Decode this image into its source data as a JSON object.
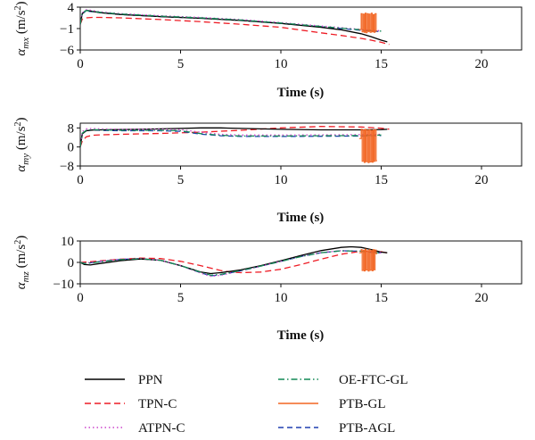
{
  "chart_data": [
    {
      "type": "line",
      "ylabel_symbol": "α",
      "ylabel_sub": "mx",
      "ylabel_unit_pre": " (m/s",
      "ylabel_unit_sup": "2",
      "ylabel_unit_post": ")",
      "xlabel": "Time (s)",
      "xlim": [
        0,
        22
      ],
      "ylim": [
        -6,
        4
      ],
      "xticks": [
        "0",
        "5",
        "10",
        "15",
        "20"
      ],
      "yticks": [
        "4",
        "−1",
        "−6"
      ],
      "xtick_values": [
        0,
        5,
        10,
        15,
        20
      ],
      "ytick_values": [
        4,
        -1,
        -6
      ],
      "series": [
        {
          "key": "ppn",
          "x": [
            0,
            0.1,
            0.3,
            0.5,
            1,
            2,
            4,
            6,
            8,
            10,
            12,
            13,
            14,
            14.5,
            15,
            15.3
          ],
          "y": [
            0,
            2.5,
            3.3,
            3.1,
            2.7,
            2.3,
            1.8,
            1.4,
            0.9,
            0.2,
            -0.7,
            -1.3,
            -2.2,
            -2.9,
            -3.7,
            -4.1
          ]
        },
        {
          "key": "tpn",
          "x": [
            0,
            0.1,
            0.3,
            0.6,
            1,
            2,
            4,
            6,
            8,
            10,
            12,
            13,
            14,
            14.5,
            15,
            15.4
          ],
          "y": [
            0,
            1.2,
            1.5,
            1.6,
            1.6,
            1.5,
            1.1,
            0.6,
            0,
            -0.7,
            -2.0,
            -2.6,
            -3.3,
            -3.7,
            -4.2,
            -4.7
          ]
        },
        {
          "key": "atpn",
          "x": [
            0,
            0.1,
            0.3,
            0.5,
            1,
            2,
            4,
            6,
            8,
            10,
            12,
            13,
            14,
            14.5,
            15
          ],
          "y": [
            0,
            2.7,
            3.4,
            3.3,
            2.9,
            2.5,
            2.0,
            1.6,
            1.1,
            0.4,
            -0.4,
            -0.8,
            -1.2,
            -1.4,
            -1.5
          ]
        },
        {
          "key": "oe",
          "x": [
            0,
            0.1,
            0.3,
            0.5,
            1,
            2,
            4,
            6,
            8,
            10,
            12,
            13,
            14,
            14.5,
            15
          ],
          "y": [
            0,
            2.6,
            3.2,
            3.1,
            2.8,
            2.4,
            1.9,
            1.5,
            1.0,
            0.3,
            -0.5,
            -0.9,
            -1.3,
            -1.5,
            -1.6
          ]
        },
        {
          "key": "ptbgl",
          "x": [
            13.9,
            14.0,
            14.0,
            14.05,
            14.05,
            14.1,
            14.1,
            14.15,
            14.15,
            14.2,
            14.2,
            14.25,
            14.25,
            14.3,
            14.3,
            14.35,
            14.35,
            14.4,
            14.4,
            14.45,
            14.45,
            14.5,
            14.5,
            14.55,
            14.55,
            14.6,
            14.6,
            14.65,
            14.65,
            14.7,
            14.7,
            14.75,
            14.75,
            14.8
          ],
          "y": [
            -1.2,
            -1.2,
            2.5,
            2.5,
            -1.8,
            -1.8,
            2.4,
            2.4,
            -1.9,
            -1.9,
            2.6,
            2.6,
            -2.0,
            -2.0,
            2.5,
            2.5,
            -1.7,
            -1.7,
            2.4,
            2.4,
            -1.9,
            -1.9,
            2.6,
            2.6,
            -1.8,
            -1.8,
            2.3,
            2.3,
            -1.9,
            -1.9,
            2.5,
            2.5,
            -1.6,
            -1.6
          ]
        },
        {
          "key": "ptbagl",
          "x": [
            0,
            0.1,
            0.3,
            0.5,
            1,
            2,
            4,
            6,
            8,
            10,
            12,
            13,
            14,
            14.5,
            15
          ],
          "y": [
            0,
            2.5,
            3.1,
            3.0,
            2.7,
            2.3,
            1.8,
            1.4,
            0.9,
            0.2,
            -0.6,
            -1.0,
            -1.4,
            -1.6,
            -1.7
          ]
        }
      ]
    },
    {
      "type": "line",
      "ylabel_symbol": "α",
      "ylabel_sub": "my",
      "ylabel_unit_pre": " (m/s",
      "ylabel_unit_sup": "2",
      "ylabel_unit_post": ")",
      "xlabel": "Time (s)",
      "xlim": [
        0,
        22
      ],
      "ylim": [
        -8,
        10
      ],
      "xticks": [
        "0",
        "5",
        "10",
        "15",
        "20"
      ],
      "yticks": [
        "8",
        "0",
        "−8"
      ],
      "xtick_values": [
        0,
        5,
        10,
        15,
        20
      ],
      "ytick_values": [
        8,
        0,
        -8
      ],
      "series": [
        {
          "key": "ppn",
          "x": [
            0,
            0.1,
            0.3,
            0.6,
            1,
            2,
            3,
            4,
            5,
            6,
            7,
            8,
            10,
            12,
            14,
            15,
            15.3
          ],
          "y": [
            0,
            5.5,
            6.8,
            7.1,
            7.2,
            7.3,
            7.4,
            7.6,
            7.8,
            8.0,
            8.0,
            7.8,
            7.4,
            7.2,
            7.2,
            7.3,
            7.4
          ]
        },
        {
          "key": "tpn",
          "x": [
            0,
            0.1,
            0.3,
            0.6,
            1,
            2,
            4,
            6,
            8,
            10,
            12,
            14,
            15,
            15.4
          ],
          "y": [
            0,
            2.5,
            4.3,
            4.9,
            5.1,
            5.3,
            5.7,
            6.2,
            7.0,
            8.0,
            8.6,
            8.4,
            7.9,
            7.5
          ]
        },
        {
          "key": "atpn",
          "x": [
            0,
            0.1,
            0.3,
            0.6,
            1,
            2,
            4,
            5,
            6,
            7,
            8,
            10,
            12,
            14,
            15
          ],
          "y": [
            0,
            6.5,
            7.6,
            7.8,
            7.6,
            7.4,
            7.5,
            7.3,
            6.2,
            5.3,
            5.0,
            5.0,
            5.1,
            5.2,
            5.3
          ]
        },
        {
          "key": "oe",
          "x": [
            0,
            0.1,
            0.3,
            0.6,
            1,
            2,
            4,
            5,
            6,
            7,
            8,
            10,
            12,
            14,
            15
          ],
          "y": [
            0,
            5.8,
            7.0,
            7.3,
            7.2,
            7.0,
            7.0,
            6.8,
            5.6,
            4.9,
            4.6,
            4.6,
            4.7,
            4.8,
            5.0
          ]
        },
        {
          "key": "ptbgl",
          "x": [
            13.9,
            14.0,
            14.0,
            14.05,
            14.05,
            14.1,
            14.1,
            14.15,
            14.15,
            14.2,
            14.2,
            14.25,
            14.25,
            14.3,
            14.3,
            14.35,
            14.35,
            14.4,
            14.4,
            14.45,
            14.45,
            14.5,
            14.5,
            14.55,
            14.55,
            14.6,
            14.6,
            14.65,
            14.65,
            14.7,
            14.7,
            14.75,
            14.75,
            14.8
          ],
          "y": [
            3.5,
            3.5,
            7.5,
            7.5,
            -6.0,
            -6.0,
            7.2,
            7.2,
            -6.5,
            -6.5,
            7.4,
            7.4,
            -6.2,
            -6.2,
            7.1,
            7.1,
            -6.6,
            -6.6,
            7.3,
            7.3,
            -6.3,
            -6.3,
            7.0,
            7.0,
            -6.4,
            -6.4,
            7.2,
            7.2,
            -6.1,
            -6.1,
            7.3,
            7.3,
            -5.8,
            -5.8
          ]
        },
        {
          "key": "ptbagl",
          "x": [
            0,
            0.1,
            0.3,
            0.6,
            1,
            2,
            4,
            5,
            6,
            7,
            8,
            10,
            12,
            14,
            15
          ],
          "y": [
            0,
            5.6,
            6.8,
            7.1,
            7.0,
            6.8,
            6.8,
            6.6,
            5.4,
            4.7,
            4.4,
            4.4,
            4.5,
            4.6,
            4.8
          ]
        }
      ]
    },
    {
      "type": "line",
      "ylabel_symbol": "α",
      "ylabel_sub": "mz",
      "ylabel_unit_pre": " (m/s",
      "ylabel_unit_sup": "2",
      "ylabel_unit_post": ")",
      "xlabel": "Time (s)",
      "xlim": [
        0,
        22
      ],
      "ylim": [
        -10,
        10
      ],
      "xticks": [
        "0",
        "5",
        "10",
        "15",
        "20"
      ],
      "yticks": [
        "10",
        "0",
        "−10"
      ],
      "xtick_values": [
        0,
        5,
        10,
        15,
        20
      ],
      "ytick_values": [
        10,
        0,
        -10
      ],
      "series": [
        {
          "key": "ppn",
          "x": [
            0,
            0.2,
            0.5,
            1,
            2,
            3,
            4,
            5,
            6,
            6.5,
            7,
            8,
            9,
            10,
            11,
            12,
            13,
            13.5,
            14,
            14.5,
            15,
            15.3
          ],
          "y": [
            0,
            -1.0,
            -1.2,
            -0.5,
            0.8,
            1.6,
            1.0,
            -1.5,
            -4.5,
            -5.2,
            -4.8,
            -3.5,
            -1.5,
            0.8,
            3.2,
            5.5,
            7.0,
            7.3,
            7.0,
            6.0,
            4.8,
            4.5
          ]
        },
        {
          "key": "tpn",
          "x": [
            0,
            0.5,
            1,
            2,
            3,
            4,
            5,
            6,
            7,
            7.5,
            8,
            9,
            10,
            11,
            12,
            13,
            14,
            15,
            15.4
          ],
          "y": [
            0,
            0.3,
            0.7,
            1.5,
            2.0,
            1.8,
            0.5,
            -1.5,
            -3.8,
            -4.5,
            -4.8,
            -4.5,
            -3.2,
            -1.0,
            1.5,
            3.8,
            5.2,
            5.0,
            4.2
          ]
        },
        {
          "key": "atpn",
          "x": [
            0,
            0.2,
            0.5,
            1,
            2,
            3,
            4,
            5,
            6,
            6.5,
            7,
            8,
            9,
            10,
            11,
            12,
            13,
            14,
            14.5,
            15
          ],
          "y": [
            0,
            -0.3,
            -0.1,
            0.5,
            1.5,
            1.8,
            1.0,
            -1.5,
            -5.0,
            -6.5,
            -6.0,
            -4.0,
            -1.8,
            0.5,
            2.8,
            4.6,
            5.5,
            5.3,
            4.8,
            4.5
          ]
        },
        {
          "key": "oe",
          "x": [
            0,
            0.2,
            0.5,
            1,
            2,
            3,
            4,
            5,
            6,
            6.5,
            7,
            8,
            9,
            10,
            11,
            12,
            13,
            14,
            14.5,
            15
          ],
          "y": [
            0,
            -0.5,
            -0.3,
            0.3,
            1.3,
            1.7,
            1.0,
            -1.5,
            -4.6,
            -6.0,
            -5.6,
            -3.8,
            -1.7,
            0.5,
            2.7,
            4.5,
            5.4,
            5.2,
            4.7,
            4.4
          ]
        },
        {
          "key": "ptbgl",
          "x": [
            13.9,
            14.0,
            14.0,
            14.05,
            14.05,
            14.1,
            14.1,
            14.15,
            14.15,
            14.2,
            14.2,
            14.25,
            14.25,
            14.3,
            14.3,
            14.35,
            14.35,
            14.4,
            14.4,
            14.45,
            14.45,
            14.5,
            14.5,
            14.55,
            14.55,
            14.6,
            14.6,
            14.65,
            14.65,
            14.7,
            14.7,
            14.75,
            14.75,
            14.8
          ],
          "y": [
            4.5,
            4.5,
            6.0,
            6.0,
            -3.8,
            -3.8,
            5.7,
            5.7,
            -4.0,
            -4.0,
            6.2,
            6.2,
            -3.6,
            -3.6,
            5.5,
            5.5,
            -4.1,
            -4.1,
            5.9,
            5.9,
            -3.7,
            -3.7,
            5.6,
            5.6,
            -3.9,
            -3.9,
            6.0,
            6.0,
            -3.5,
            -3.5,
            5.8,
            5.8,
            4.0,
            4.0
          ]
        },
        {
          "key": "ptbagl",
          "x": [
            0,
            0.2,
            0.5,
            1,
            2,
            3,
            4,
            5,
            6,
            6.5,
            7,
            8,
            9,
            10,
            11,
            12,
            13,
            14,
            14.5,
            15
          ],
          "y": [
            0,
            -0.4,
            -0.2,
            0.4,
            1.4,
            1.7,
            1.0,
            -1.5,
            -4.8,
            -6.3,
            -5.8,
            -3.9,
            -1.7,
            0.5,
            2.8,
            4.5,
            5.4,
            5.2,
            4.7,
            4.4
          ]
        }
      ]
    }
  ],
  "legend": {
    "position": "bottom",
    "items": [
      {
        "key": "ppn",
        "label": "PPN",
        "color": "#000000",
        "dash": ""
      },
      {
        "key": "tpn",
        "label": "TPN-C",
        "color": "#ee1c25",
        "dash": "7,4"
      },
      {
        "key": "atpn",
        "label": "ATPN-C",
        "color": "#cc44cc",
        "dash": "1.5,3"
      },
      {
        "key": "oe",
        "label": "OE-FTC-GL",
        "color": "#118855",
        "dash": "7,3,1.5,3"
      },
      {
        "key": "ptbgl",
        "label": "PTB-GL",
        "color": "#f26522",
        "dash": ""
      },
      {
        "key": "ptbagl",
        "label": "PTB-AGL",
        "color": "#1f3fb0",
        "dash": "6,4"
      }
    ]
  }
}
